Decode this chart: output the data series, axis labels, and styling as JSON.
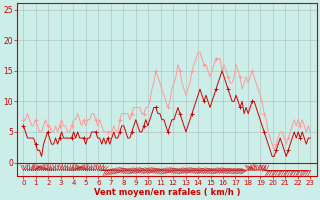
{
  "xlabel": "Vent moyen/en rafales ( km/h )",
  "bg_color": "#cceee8",
  "grid_color": "#999999",
  "axis_color": "#cc0000",
  "label_color": "#cc0000",
  "xlabel_color": "#cc0000",
  "ylim": [
    0,
    26
  ],
  "yticks": [
    0,
    5,
    10,
    15,
    20,
    25
  ],
  "hour_ticks": [
    0,
    1,
    2,
    3,
    4,
    5,
    6,
    7,
    8,
    9,
    10,
    11,
    12,
    13,
    14,
    15,
    16,
    17,
    18,
    19,
    20,
    21,
    22,
    23
  ],
  "mean_color": "#cc0000",
  "gust_color": "#ff9999",
  "mean_wind": [
    6,
    5,
    4,
    4,
    4,
    4,
    3,
    2,
    2,
    1,
    3,
    4,
    5,
    4,
    3,
    3,
    4,
    3,
    4,
    5,
    4,
    4,
    4,
    4,
    4,
    5,
    4,
    5,
    4,
    4,
    4,
    3,
    4,
    4,
    5,
    5,
    5,
    4,
    4,
    3,
    4,
    3,
    4,
    3,
    4,
    5,
    4,
    4,
    5,
    6,
    6,
    5,
    4,
    4,
    5,
    6,
    7,
    6,
    5,
    5,
    6,
    7,
    6,
    7,
    8,
    9,
    9,
    8,
    8,
    7,
    7,
    6,
    5,
    6,
    7,
    7,
    8,
    9,
    8,
    7,
    6,
    5,
    6,
    7,
    8,
    9,
    10,
    11,
    12,
    11,
    10,
    11,
    10,
    9,
    10,
    11,
    12,
    13,
    14,
    15,
    14,
    13,
    12,
    11,
    10,
    10,
    11,
    10,
    9,
    10,
    8,
    9,
    8,
    9,
    10,
    10,
    9,
    8,
    7,
    6,
    5,
    4,
    3,
    2,
    1,
    1,
    2,
    3,
    4,
    3,
    2,
    1,
    2,
    3,
    4,
    5,
    4,
    5,
    4,
    5,
    4,
    3,
    4,
    4
  ],
  "gust_wind": [
    7,
    7,
    8,
    7,
    6,
    6,
    7,
    6,
    5,
    5,
    6,
    7,
    6,
    6,
    5,
    5,
    6,
    5,
    6,
    7,
    6,
    6,
    5,
    5,
    6,
    7,
    7,
    8,
    7,
    6,
    7,
    6,
    7,
    7,
    8,
    8,
    7,
    6,
    7,
    6,
    5,
    5,
    5,
    5,
    5,
    6,
    5,
    5,
    7,
    8,
    8,
    8,
    8,
    7,
    8,
    9,
    9,
    9,
    9,
    8,
    8,
    9,
    9,
    10,
    12,
    13,
    15,
    14,
    13,
    12,
    11,
    10,
    9,
    10,
    12,
    13,
    14,
    16,
    15,
    13,
    12,
    11,
    12,
    13,
    15,
    16,
    17,
    18,
    18,
    17,
    16,
    16,
    15,
    14,
    15,
    16,
    17,
    17,
    17,
    15,
    16,
    15,
    14,
    13,
    13,
    14,
    16,
    15,
    14,
    12,
    13,
    14,
    13,
    14,
    15,
    14,
    13,
    12,
    11,
    10,
    8,
    7,
    5,
    4,
    3,
    2,
    3,
    4,
    5,
    5,
    4,
    3,
    4,
    5,
    6,
    7,
    6,
    7,
    6,
    7,
    6,
    5,
    6,
    5
  ],
  "wind_dir_angles": [
    180,
    180,
    195,
    200,
    210,
    200,
    190,
    185,
    180,
    175,
    170,
    165,
    160,
    155,
    150,
    155,
    160,
    170,
    180,
    185,
    190,
    195,
    200,
    205,
    210,
    200,
    195,
    190,
    180,
    175,
    170,
    165,
    160,
    155,
    160,
    165,
    170,
    180,
    185,
    190,
    195,
    45,
    50,
    55,
    60,
    65,
    70,
    75,
    80,
    90,
    100,
    90,
    85,
    80,
    75,
    80,
    85,
    90,
    85,
    90,
    95,
    85,
    80,
    90,
    85,
    90,
    95,
    90,
    85,
    80,
    75,
    70,
    80,
    85,
    90,
    95,
    90,
    85,
    80,
    75,
    80,
    85,
    90,
    85,
    90,
    95,
    90,
    85,
    80,
    85,
    90,
    85,
    80,
    90,
    85,
    80,
    75,
    80,
    85,
    90,
    85,
    90,
    85,
    80,
    85,
    80,
    75,
    80,
    75,
    80,
    75,
    80,
    180,
    175,
    170,
    165,
    160,
    175,
    180,
    185,
    175,
    180,
    45,
    50,
    45,
    40,
    50,
    45,
    40,
    50,
    45,
    40,
    50,
    45,
    40,
    50,
    45,
    40,
    50,
    40,
    45,
    50,
    45,
    40
  ]
}
